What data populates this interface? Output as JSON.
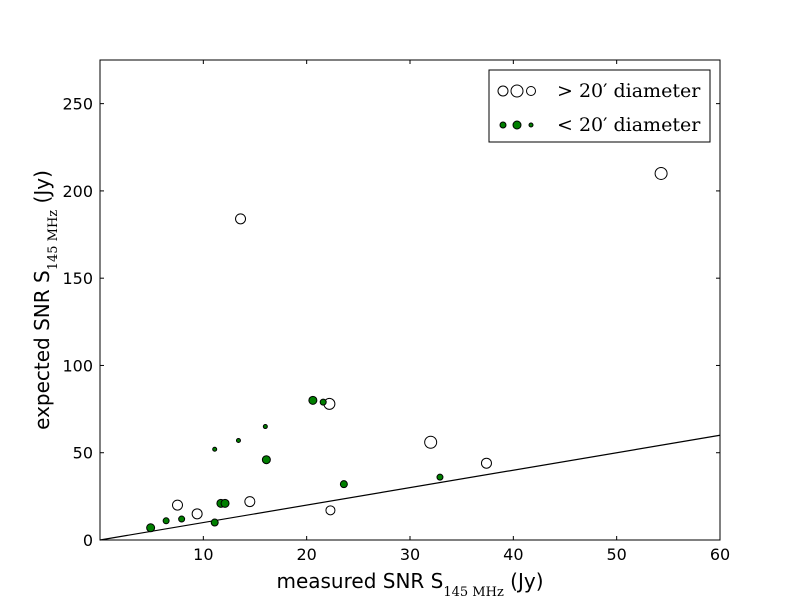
{
  "chart_data": {
    "type": "scatter",
    "xlabel": {
      "prefix": "measured SNR S",
      "sub": "145 MHz",
      "suffix": " (Jy)"
    },
    "ylabel": {
      "prefix": "expected SNR S",
      "sub": "145 MHz",
      "suffix": " (Jy)"
    },
    "xlim": [
      0,
      60
    ],
    "ylim": [
      0,
      275
    ],
    "xticks": [
      10,
      20,
      30,
      40,
      50,
      60
    ],
    "yticks": [
      0,
      50,
      100,
      150,
      200,
      250
    ],
    "grid": false,
    "legend_position": "top-right",
    "legend": [
      {
        "label": "> 20′ diameter",
        "fill": "#ffffff"
      },
      {
        "label": "< 20′ diameter",
        "fill": "#007f00"
      }
    ],
    "line": {
      "x": [
        0,
        60
      ],
      "y": [
        0,
        60
      ]
    },
    "series": [
      {
        "fill": "#ffffff",
        "points": [
          {
            "x": 7.5,
            "y": 20,
            "size": 1.0
          },
          {
            "x": 9.4,
            "y": 15,
            "size": 1.0
          },
          {
            "x": 13.6,
            "y": 184,
            "size": 1.0
          },
          {
            "x": 14.5,
            "y": 22,
            "size": 1.0
          },
          {
            "x": 22.2,
            "y": 78,
            "size": 1.1
          },
          {
            "x": 22.3,
            "y": 17,
            "size": 0.9
          },
          {
            "x": 32.0,
            "y": 56,
            "size": 1.2
          },
          {
            "x": 37.4,
            "y": 44,
            "size": 1.0
          },
          {
            "x": 54.3,
            "y": 210,
            "size": 1.2
          }
        ]
      },
      {
        "fill": "#007f00",
        "points": [
          {
            "x": 4.9,
            "y": 7,
            "size": 0.8
          },
          {
            "x": 6.4,
            "y": 11,
            "size": 0.6
          },
          {
            "x": 7.9,
            "y": 12,
            "size": 0.6
          },
          {
            "x": 11.1,
            "y": 10,
            "size": 0.7
          },
          {
            "x": 11.1,
            "y": 52,
            "size": 0.4
          },
          {
            "x": 11.7,
            "y": 21,
            "size": 0.8
          },
          {
            "x": 12.1,
            "y": 21,
            "size": 0.8
          },
          {
            "x": 13.4,
            "y": 57,
            "size": 0.4
          },
          {
            "x": 16.0,
            "y": 65,
            "size": 0.4
          },
          {
            "x": 16.1,
            "y": 46,
            "size": 0.8
          },
          {
            "x": 20.6,
            "y": 80,
            "size": 0.8
          },
          {
            "x": 21.6,
            "y": 79,
            "size": 0.6
          },
          {
            "x": 23.6,
            "y": 32,
            "size": 0.7
          },
          {
            "x": 32.9,
            "y": 36,
            "size": 0.6
          }
        ]
      }
    ]
  }
}
